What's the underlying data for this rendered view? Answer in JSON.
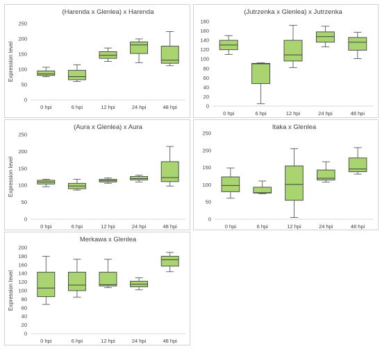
{
  "chart_data": [
    {
      "type": "boxplot",
      "title": "(Harenda x Glenlea) x Harenda",
      "ylabel": "Expression level",
      "xlabel": "",
      "ylim": [
        0,
        250
      ],
      "yticks": [
        0,
        50,
        100,
        150,
        200,
        250
      ],
      "categories": [
        "0 hpi",
        "6 hpi",
        "12 hpi",
        "24 hpi",
        "48 hpi"
      ],
      "boxes": [
        {
          "min": 76,
          "q1": 80,
          "median": 85,
          "q3": 95,
          "max": 107
        },
        {
          "min": 60,
          "q1": 66,
          "median": 76,
          "q3": 97,
          "max": 115
        },
        {
          "min": 126,
          "q1": 136,
          "median": 146,
          "q3": 158,
          "max": 170
        },
        {
          "min": 122,
          "q1": 152,
          "median": 180,
          "q3": 190,
          "max": 200
        },
        {
          "min": 112,
          "q1": 120,
          "median": 130,
          "q3": 176,
          "max": 224
        }
      ],
      "box_color": "#a9d46f",
      "grid": false
    },
    {
      "type": "boxplot",
      "title": "(Jutrzenka x Glenlea) x Jutrzenka",
      "ylabel": "",
      "xlabel": "",
      "ylim": [
        0,
        180
      ],
      "yticks": [
        0,
        20,
        40,
        60,
        80,
        100,
        120,
        140,
        160,
        180
      ],
      "categories": [
        "0 hpi",
        "6 hpi",
        "12 hpi",
        "24 hpi",
        "48 hpi"
      ],
      "boxes": [
        {
          "min": 110,
          "q1": 120,
          "median": 130,
          "q3": 140,
          "max": 150
        },
        {
          "min": 5,
          "q1": 48,
          "median": 90,
          "q3": 91,
          "max": 92
        },
        {
          "min": 82,
          "q1": 96,
          "median": 109,
          "q3": 140,
          "max": 172
        },
        {
          "min": 126,
          "q1": 136,
          "median": 148,
          "q3": 158,
          "max": 170
        },
        {
          "min": 101,
          "q1": 119,
          "median": 136,
          "q3": 146,
          "max": 157
        }
      ],
      "box_color": "#a9d46f",
      "grid": false
    },
    {
      "type": "boxplot",
      "title": "(Aura x Glenlea) x Aura",
      "ylabel": "Expression level",
      "xlabel": "",
      "ylim": [
        0,
        250
      ],
      "yticks": [
        0,
        50,
        100,
        150,
        200,
        250
      ],
      "categories": [
        "0 hpi",
        "6 hpi",
        "12 hpi",
        "24 hpi",
        "48 hpi"
      ],
      "boxes": [
        {
          "min": 96,
          "q1": 104,
          "median": 110,
          "q3": 115,
          "max": 118
        },
        {
          "min": 86,
          "q1": 90,
          "median": 98,
          "q3": 106,
          "max": 118
        },
        {
          "min": 106,
          "q1": 110,
          "median": 114,
          "q3": 118,
          "max": 122
        },
        {
          "min": 110,
          "q1": 116,
          "median": 120,
          "q3": 126,
          "max": 130
        },
        {
          "min": 98,
          "q1": 111,
          "median": 123,
          "q3": 170,
          "max": 215
        }
      ],
      "box_color": "#a9d46f",
      "grid": false
    },
    {
      "type": "boxplot",
      "title": "Itaka x Glenlea",
      "ylabel": "",
      "xlabel": "",
      "ylim": [
        0,
        250
      ],
      "yticks": [
        0,
        50,
        100,
        150,
        200,
        250
      ],
      "categories": [
        "0 hpi",
        "6 hpi",
        "12 hpi",
        "24 hpi",
        "48 hpi"
      ],
      "boxes": [
        {
          "min": 61,
          "q1": 80,
          "median": 98,
          "q3": 123,
          "max": 149
        },
        {
          "min": 74,
          "q1": 76,
          "median": 77,
          "q3": 93,
          "max": 111
        },
        {
          "min": 5,
          "q1": 55,
          "median": 101,
          "q3": 155,
          "max": 205
        },
        {
          "min": 108,
          "q1": 114,
          "median": 119,
          "q3": 143,
          "max": 167
        },
        {
          "min": 131,
          "q1": 138,
          "median": 146,
          "q3": 178,
          "max": 208
        }
      ],
      "box_color": "#a9d46f",
      "grid": false
    },
    {
      "type": "boxplot",
      "title": "Merkawa x Glenlea",
      "ylabel": "Expression level",
      "xlabel": "",
      "ylim": [
        0,
        200
      ],
      "yticks": [
        0,
        20,
        40,
        60,
        80,
        100,
        120,
        140,
        160,
        180,
        200
      ],
      "categories": [
        "0 hpi",
        "6 hpi",
        "12 hpi",
        "24 hpi",
        "48 hpi"
      ],
      "boxes": [
        {
          "min": 68,
          "q1": 86,
          "median": 106,
          "q3": 143,
          "max": 180
        },
        {
          "min": 85,
          "q1": 100,
          "median": 113,
          "q3": 143,
          "max": 173
        },
        {
          "min": 107,
          "q1": 111,
          "median": 114,
          "q3": 143,
          "max": 173
        },
        {
          "min": 102,
          "q1": 109,
          "median": 115,
          "q3": 122,
          "max": 130
        },
        {
          "min": 144,
          "q1": 157,
          "median": 172,
          "q3": 180,
          "max": 189
        }
      ],
      "box_color": "#a9d46f",
      "grid": false
    }
  ]
}
